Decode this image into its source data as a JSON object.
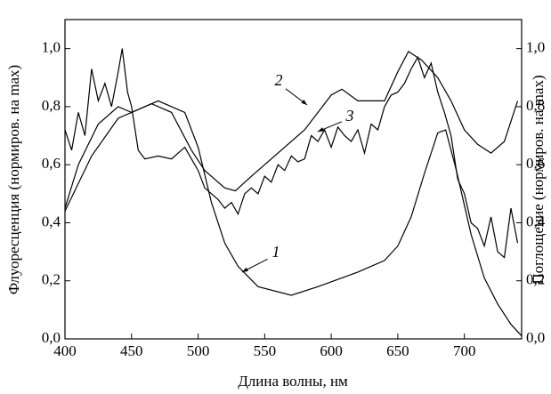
{
  "chart_data": {
    "type": "line",
    "xlabel": "Длина волны, нм",
    "ylabel": "Флуоресценция (нормиров. на max)",
    "y2label": "Поглощение (нормиров. на max)",
    "xlim": [
      400,
      743
    ],
    "xticks": [
      400,
      450,
      500,
      550,
      600,
      650,
      700
    ],
    "ylim": [
      0,
      1.1
    ],
    "yticks": [
      {
        "value": 0,
        "label": "0,0"
      },
      {
        "value": 0.2,
        "label": "0,2"
      },
      {
        "value": 0.4,
        "label": "0,4"
      },
      {
        "value": 0.6,
        "label": "0,6"
      },
      {
        "value": 0.8,
        "label": "0,8"
      },
      {
        "value": 1.0,
        "label": "1,0"
      }
    ],
    "y2lim": [
      0,
      1.1
    ],
    "y2ticks": [
      {
        "value": 0,
        "label": "0,0"
      },
      {
        "value": 0.2,
        "label": "0,2"
      },
      {
        "value": 0.4,
        "label": "0,4"
      },
      {
        "value": 0.6,
        "label": "0,6"
      },
      {
        "value": 0.8,
        "label": "0,8"
      },
      {
        "value": 1.0,
        "label": "1,0"
      }
    ],
    "series": [
      {
        "name": "1",
        "color": "#000000",
        "x": [
          400,
          420,
          440,
          460,
          470,
          490,
          500,
          510,
          520,
          530,
          545,
          570,
          590,
          620,
          640,
          650,
          660,
          670,
          680,
          686,
          694,
          705,
          715,
          725,
          735,
          743
        ],
        "values": [
          0.44,
          0.63,
          0.76,
          0.8,
          0.82,
          0.78,
          0.66,
          0.47,
          0.33,
          0.25,
          0.18,
          0.15,
          0.18,
          0.23,
          0.27,
          0.32,
          0.42,
          0.57,
          0.71,
          0.72,
          0.58,
          0.36,
          0.21,
          0.12,
          0.05,
          0.01
        ]
      },
      {
        "name": "2",
        "color": "#000000",
        "axis": "y2",
        "x": [
          400,
          410,
          425,
          440,
          450,
          465,
          480,
          495,
          505,
          520,
          528,
          540,
          560,
          580,
          600,
          608,
          620,
          640,
          650,
          658,
          668,
          680,
          690,
          700,
          710,
          720,
          730,
          740
        ],
        "values": [
          0.45,
          0.6,
          0.74,
          0.8,
          0.78,
          0.81,
          0.78,
          0.65,
          0.58,
          0.52,
          0.51,
          0.56,
          0.64,
          0.72,
          0.84,
          0.86,
          0.82,
          0.82,
          0.92,
          0.99,
          0.96,
          0.9,
          0.82,
          0.72,
          0.67,
          0.64,
          0.68,
          0.82
        ]
      },
      {
        "name": "3",
        "color": "#000000",
        "x": [
          400,
          405,
          410,
          415,
          420,
          425,
          430,
          435,
          440,
          443,
          447,
          450,
          455,
          460,
          470,
          480,
          490,
          495,
          500,
          505,
          510,
          515,
          520,
          525,
          530,
          535,
          540,
          545,
          550,
          555,
          560,
          565,
          570,
          575,
          580,
          585,
          590,
          595,
          600,
          605,
          610,
          615,
          620,
          625,
          630,
          635,
          640,
          645,
          650,
          655,
          660,
          665,
          670,
          675,
          680,
          685,
          690,
          695,
          700,
          705,
          710,
          715,
          720,
          725,
          730,
          735,
          740
        ],
        "values": [
          0.72,
          0.65,
          0.78,
          0.7,
          0.93,
          0.82,
          0.88,
          0.8,
          0.92,
          1.0,
          0.85,
          0.8,
          0.65,
          0.62,
          0.63,
          0.62,
          0.66,
          0.62,
          0.58,
          0.52,
          0.5,
          0.48,
          0.45,
          0.47,
          0.43,
          0.5,
          0.52,
          0.5,
          0.56,
          0.54,
          0.6,
          0.58,
          0.63,
          0.61,
          0.62,
          0.7,
          0.68,
          0.72,
          0.66,
          0.73,
          0.7,
          0.68,
          0.72,
          0.64,
          0.74,
          0.72,
          0.8,
          0.84,
          0.85,
          0.88,
          0.93,
          0.97,
          0.9,
          0.95,
          0.85,
          0.78,
          0.7,
          0.55,
          0.5,
          0.4,
          0.38,
          0.32,
          0.42,
          0.3,
          0.28,
          0.45,
          0.33
        ]
      }
    ]
  }
}
